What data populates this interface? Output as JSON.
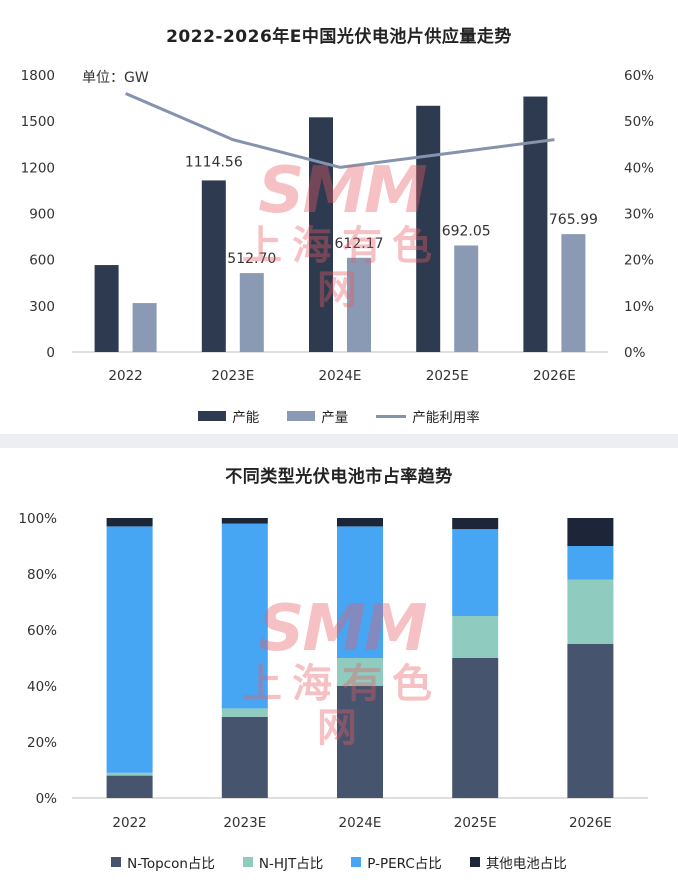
{
  "charts": {
    "top": {
      "title": "2022-2026年E中国光伏电池片供应量走势",
      "unit_label": "单位：GW"
    },
    "bottom": {
      "title": "不同类型光伏电池市占率趋势"
    }
  },
  "watermark": {
    "logo": "SMM",
    "name": "上海有色网"
  },
  "colors": {
    "capacity": "#2d3a4f",
    "output": "#8a99b4",
    "utilization": "#8593ad",
    "topcon": "#46546e",
    "hjt": "#8fcbbe",
    "perc": "#47a6f4",
    "other": "#1c2638",
    "axis_text": "#333333",
    "axis_line": "#bfbfbf"
  },
  "chart_data": [
    {
      "type": "bar",
      "title": "2022-2026年E中国光伏电池片供应量走势",
      "categories": [
        "2022",
        "2023E",
        "2024E",
        "2025E",
        "2026E"
      ],
      "series": [
        {
          "name": "产能",
          "type": "bar",
          "axis": "left",
          "values": [
            565,
            1115,
            1525,
            1600,
            1660
          ]
        },
        {
          "name": "产量",
          "type": "bar",
          "axis": "left",
          "values": [
            318,
            512.7,
            612.17,
            692.05,
            765.99
          ],
          "data_labels": [
            "",
            "512.70",
            "612.17",
            "692.05",
            "765.99"
          ]
        },
        {
          "name": "产能利用率",
          "type": "line",
          "axis": "right",
          "values": [
            0.56,
            0.46,
            0.4,
            0.43,
            0.46
          ]
        }
      ],
      "annotations": [
        {
          "category": "2023E",
          "series": "产能",
          "text": "1114.56"
        }
      ],
      "ylim": [
        0,
        1800
      ],
      "yticks": [
        "0",
        "300",
        "600",
        "900",
        "1200",
        "1500",
        "1800"
      ],
      "y2lim": [
        0,
        0.6
      ],
      "y2ticks": [
        "0%",
        "10%",
        "20%",
        "30%",
        "40%",
        "50%",
        "60%"
      ],
      "grid": false,
      "legend": "bottom"
    },
    {
      "type": "bar",
      "stacked": true,
      "title": "不同类型光伏电池市占率趋势",
      "categories": [
        "2022",
        "2023E",
        "2024E",
        "2025E",
        "2026E"
      ],
      "series": [
        {
          "name": "N-Topcon占比",
          "values": [
            0.08,
            0.29,
            0.4,
            0.5,
            0.55
          ]
        },
        {
          "name": "N-HJT占比",
          "values": [
            0.01,
            0.03,
            0.1,
            0.15,
            0.23
          ]
        },
        {
          "name": "P-PERC占比",
          "values": [
            0.88,
            0.66,
            0.47,
            0.31,
            0.12
          ]
        },
        {
          "name": "其他电池占比",
          "values": [
            0.03,
            0.02,
            0.03,
            0.04,
            0.1
          ]
        }
      ],
      "ylim": [
        0,
        1
      ],
      "yticks": [
        "0%",
        "20%",
        "40%",
        "60%",
        "80%",
        "100%"
      ],
      "grid": false,
      "legend": "bottom"
    }
  ]
}
